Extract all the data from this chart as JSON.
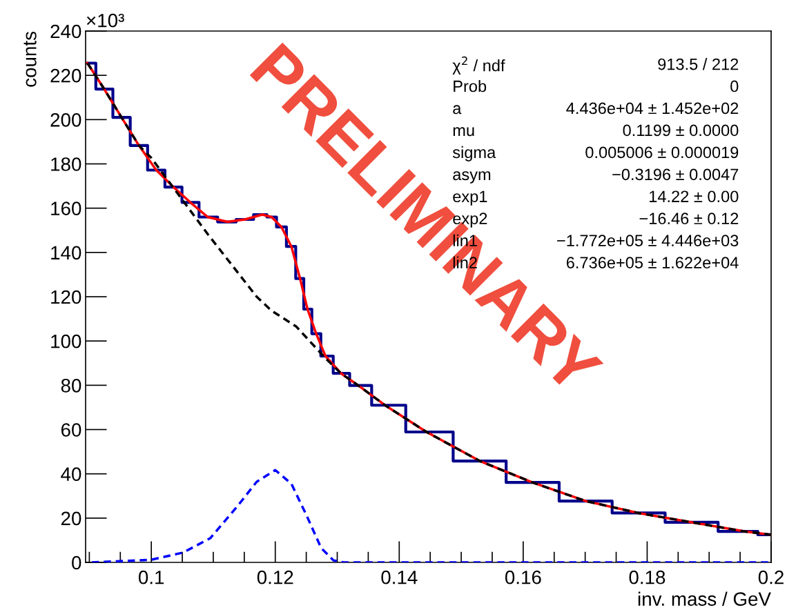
{
  "chart_data": {
    "type": "line",
    "xlabel": "inv. mass / GeV",
    "ylabel": "counts",
    "xlim": [
      0.0894,
      0.2
    ],
    "xticks": [
      0.1,
      0.12,
      0.14,
      0.16,
      0.18,
      0.2
    ],
    "ylim": [
      0,
      240
    ],
    "yticks": [
      0,
      20,
      40,
      60,
      80,
      100,
      120,
      140,
      160,
      180,
      200,
      220,
      240
    ],
    "grid": false,
    "legend": false,
    "series": [
      {
        "type": "step",
        "color": "#00008b",
        "line_style": "solid",
        "x": [
          0.0897,
          0.0924,
          0.0952,
          0.098,
          0.1008,
          0.1036,
          0.1063,
          0.1091,
          0.1123,
          0.1151,
          0.1179,
          0.1194,
          0.121,
          0.1226,
          0.124,
          0.1252,
          0.1266,
          0.1281,
          0.1306,
          0.1334,
          0.1377,
          0.1444,
          0.153,
          0.1615,
          0.1701,
          0.1786,
          0.1872,
          0.1957,
          0.2
        ],
        "values": [
          225.5,
          213.8,
          201,
          188.3,
          177.2,
          169.5,
          162.6,
          156,
          153.8,
          154.9,
          157.1,
          156,
          151.5,
          142.7,
          128.2,
          114.4,
          103.3,
          93.2,
          85.4,
          79.9,
          71,
          58.9,
          45.8,
          36.1,
          27.7,
          22.3,
          18.1,
          14.0,
          12.5
        ]
      },
      {
        "type": "line",
        "color": "#ff0000",
        "line_style": "solid",
        "x": [
          0.0897,
          0.0924,
          0.0952,
          0.098,
          0.1008,
          0.1036,
          0.1063,
          0.1091,
          0.1123,
          0.1151,
          0.1179,
          0.1194,
          0.121,
          0.1226,
          0.124,
          0.1252,
          0.1266,
          0.1281,
          0.1306,
          0.1334,
          0.1377,
          0.1444,
          0.153,
          0.1615,
          0.1701,
          0.1786,
          0.1872,
          0.1957,
          0.2
        ],
        "values": [
          225.5,
          213.8,
          201,
          188.3,
          177.2,
          169.5,
          162.6,
          156,
          153.8,
          154.9,
          157.1,
          156,
          151.5,
          142.7,
          128.2,
          114.4,
          103.3,
          93.2,
          85.4,
          79.9,
          71,
          58.9,
          45.8,
          36.1,
          27.7,
          22.3,
          18.1,
          14.0,
          12.5
        ]
      },
      {
        "type": "line",
        "color": "#000000",
        "line_style": "dashed",
        "x": [
          0.0897,
          0.0924,
          0.0952,
          0.098,
          0.1,
          0.1091,
          0.117,
          0.1194,
          0.1234,
          0.1281,
          0.1306,
          0.1334,
          0.1377,
          0.1444,
          0.153,
          0.1615,
          0.1701,
          0.1786,
          0.1872,
          0.1957,
          0.2
        ],
        "values": [
          225.5,
          213.8,
          201,
          188.3,
          182.7,
          148.3,
          120,
          113.7,
          106.5,
          92.2,
          85.4,
          79.9,
          71,
          58.9,
          45.8,
          36.1,
          27.7,
          22.3,
          18.1,
          14.0,
          12.5
        ]
      },
      {
        "type": "line",
        "color": "#0000ff",
        "line_style": "dashed",
        "x": [
          0.0904,
          0.1,
          0.1051,
          0.1095,
          0.1139,
          0.117,
          0.12,
          0.1226,
          0.1251,
          0.1274,
          0.1294,
          0.131,
          0.2
        ],
        "values": [
          0,
          1.2,
          4.4,
          10.9,
          25.4,
          36.4,
          41.7,
          35.5,
          20.9,
          6.5,
          0.9,
          0,
          0
        ]
      }
    ],
    "annotations": [
      "×10³",
      "PRELIMINARY",
      "χ$^{2}$ / ndf",
      "913.5 / 212",
      "Prob",
      "0",
      "a",
      "4.436e+04 ± 1.452e+02",
      "mu",
      "0.1199 ± 0.0000",
      "sigma",
      "0.005006 ± 0.000019",
      "asym",
      "−0.3196 ± 0.0047",
      "exp1",
      "14.22 ± 0.00",
      "exp2",
      "−16.46 ± 0.12",
      "lin1",
      "−1.772e+05 ± 4.446e+03",
      "lin2",
      "6.736e+05 ± 1.622e+04"
    ]
  }
}
